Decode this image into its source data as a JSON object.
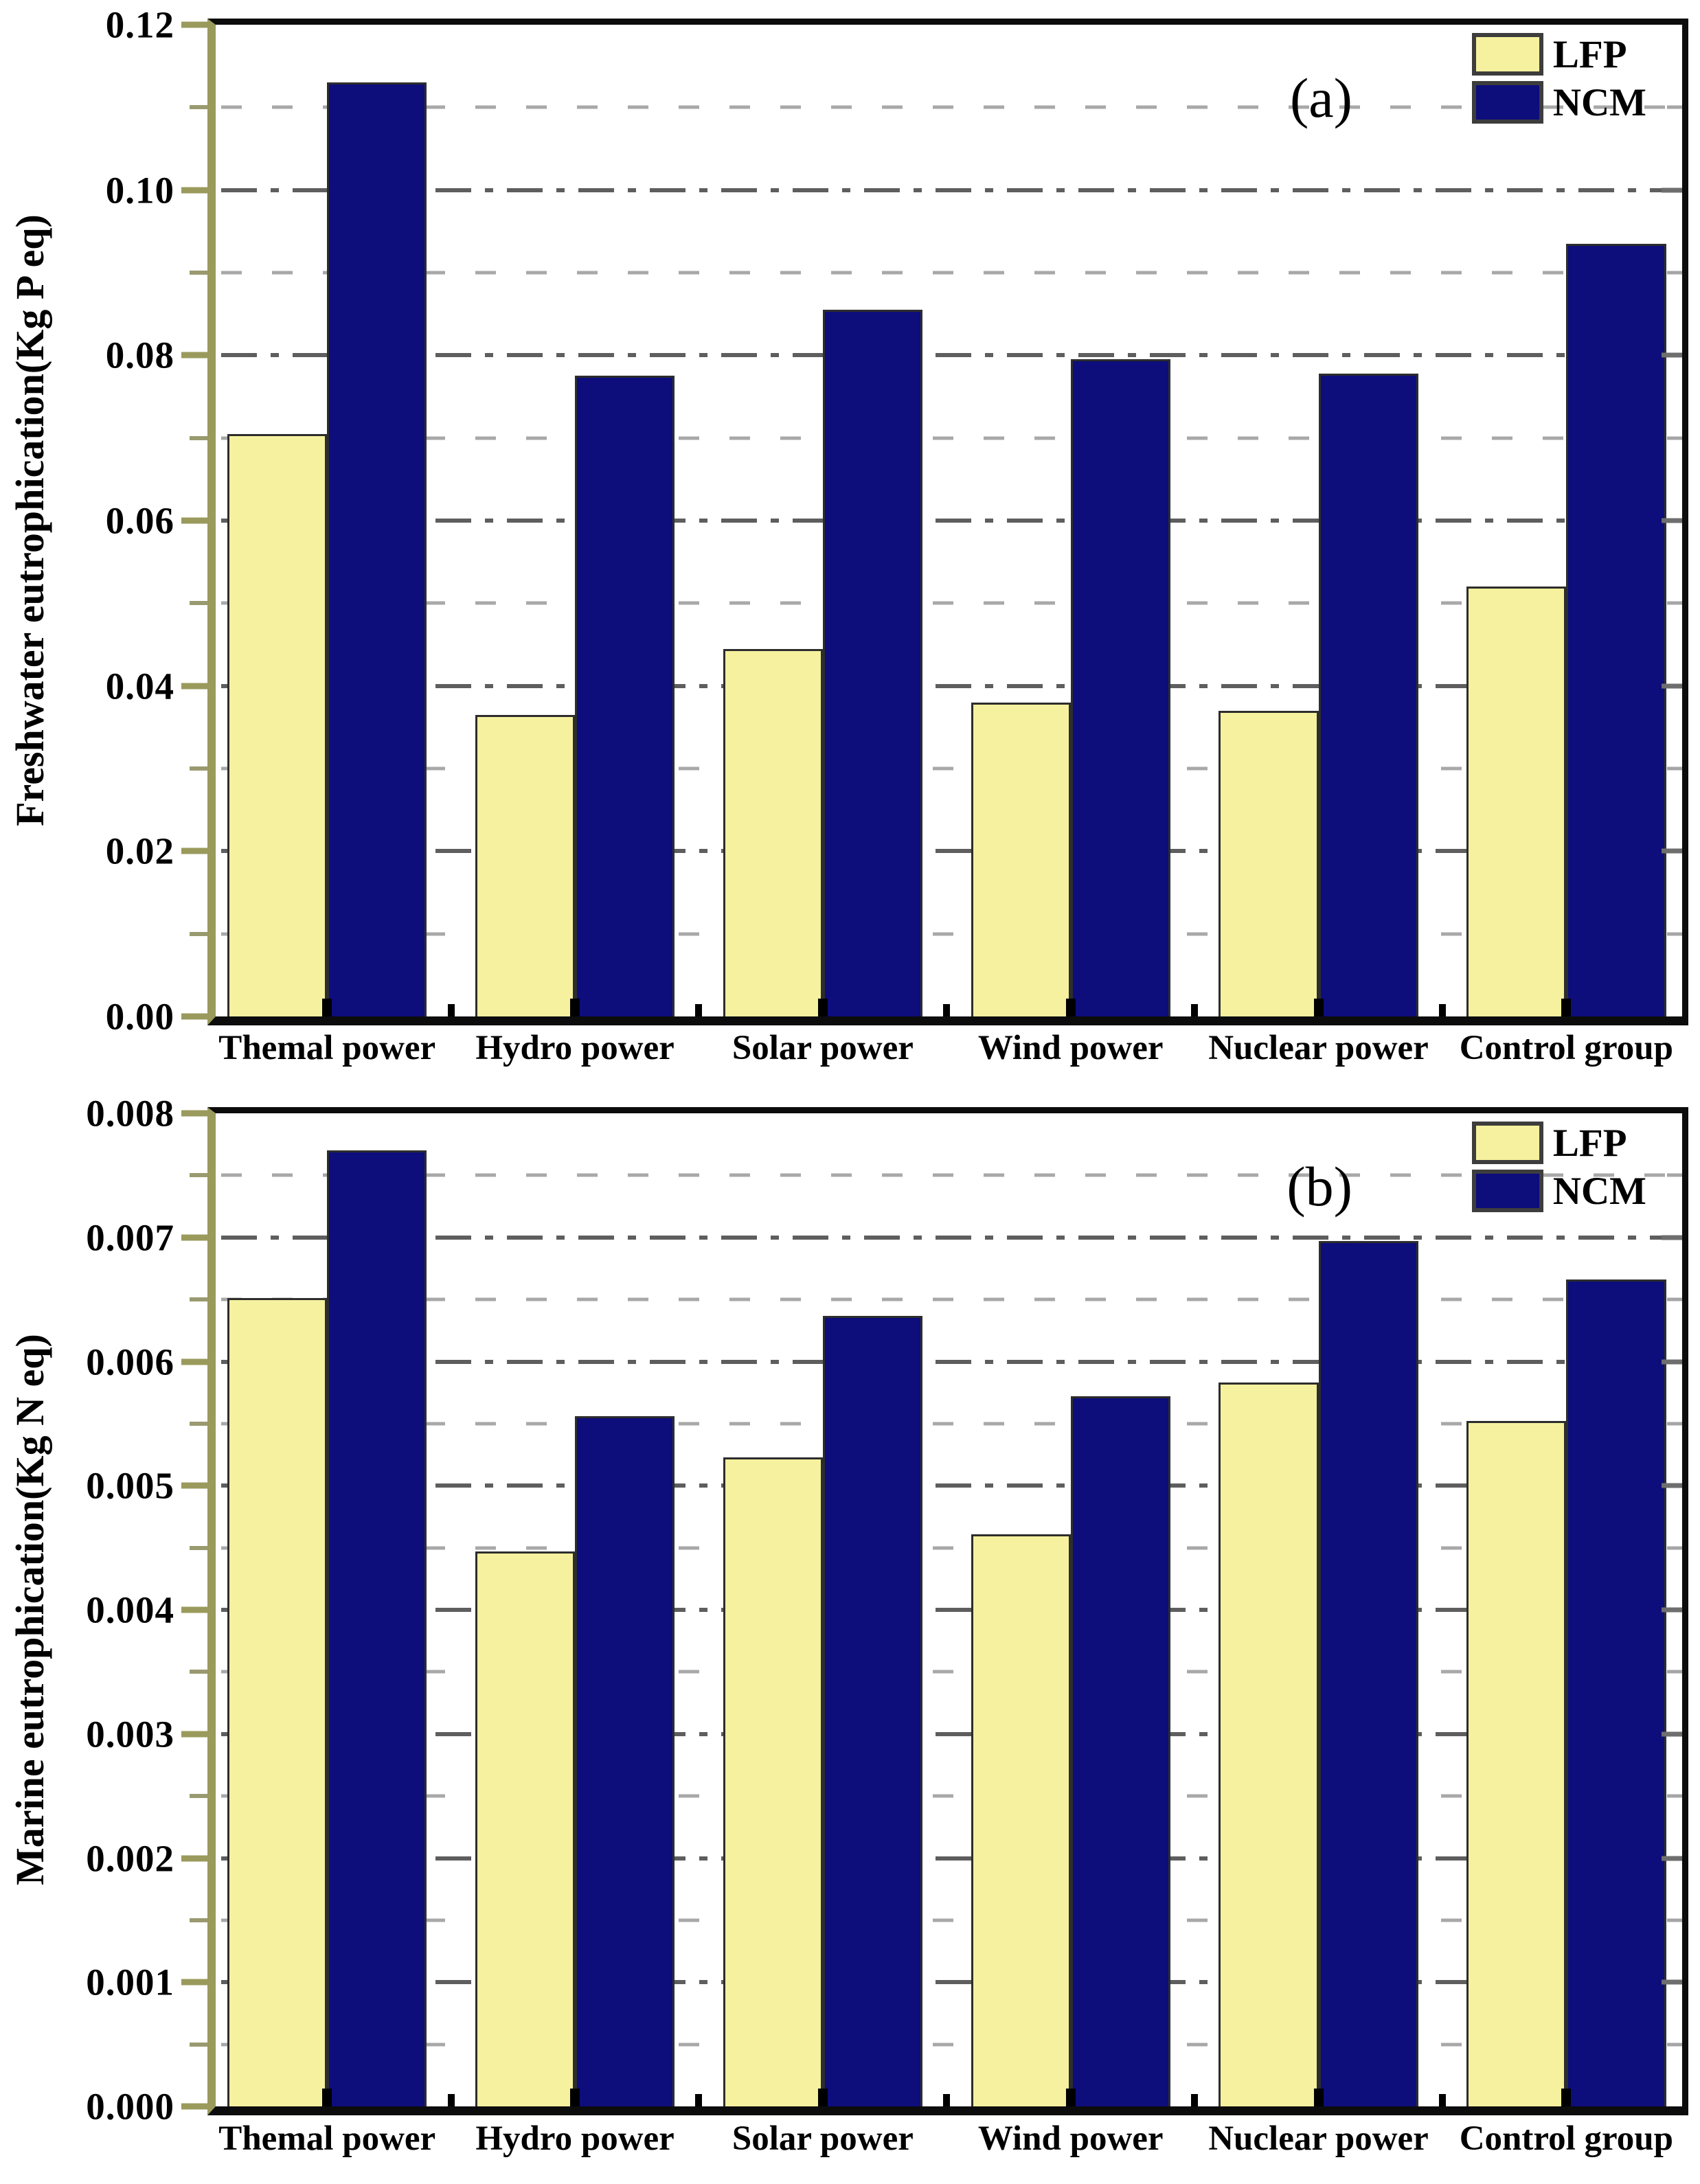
{
  "colors": {
    "lfp": "#f5f19e",
    "ncm": "#0d0d7c",
    "axis_spine_left": "#9a9a5c",
    "axis_spine_black": "#0c0c0c",
    "grid_major": "#5e5e5e",
    "grid_minor": "#a8a8a8",
    "bar_border": "#2d2d2d"
  },
  "chart_data": [
    {
      "id": "a",
      "type": "bar",
      "panel_label": "(a)",
      "ylabel": "Freshwater eutrophication(Kg P eq)",
      "xlabel": "",
      "ylim": [
        0,
        0.12
      ],
      "major_tick": 0.02,
      "minor_tick": 0.01,
      "tick_decimals": 2,
      "grid": "dash-dot at major ticks, dashed at minor ticks",
      "legend_position": "top-right",
      "categories": [
        "Themal power",
        "Hydro power",
        "Solar power",
        "Wind power",
        "Nuclear power",
        "Control group"
      ],
      "series": [
        {
          "name": "LFP",
          "color": "#f5f19e",
          "values": [
            0.0705,
            0.0365,
            0.0445,
            0.038,
            0.037,
            0.052
          ]
        },
        {
          "name": "NCM",
          "color": "#0d0d7c",
          "values": [
            0.113,
            0.0775,
            0.0855,
            0.0795,
            0.0778,
            0.0935
          ]
        }
      ]
    },
    {
      "id": "b",
      "type": "bar",
      "panel_label": "(b)",
      "ylabel": "Marine eutrophication(Kg N eq)",
      "xlabel": "",
      "ylim": [
        0,
        0.008
      ],
      "major_tick": 0.001,
      "minor_tick": 0.0005,
      "tick_decimals": 3,
      "grid": "dash-dot at major ticks, dashed at minor ticks",
      "legend_position": "top-right",
      "categories": [
        "Themal power",
        "Hydro power",
        "Solar power",
        "Wind power",
        "Nuclear power",
        "Control group"
      ],
      "series": [
        {
          "name": "LFP",
          "color": "#f5f19e",
          "values": [
            0.00651,
            0.00447,
            0.00523,
            0.00461,
            0.00583,
            0.00552
          ]
        },
        {
          "name": "NCM",
          "color": "#0d0d7c",
          "values": [
            0.0077,
            0.00556,
            0.00637,
            0.00572,
            0.00697,
            0.00666
          ]
        }
      ]
    }
  ]
}
